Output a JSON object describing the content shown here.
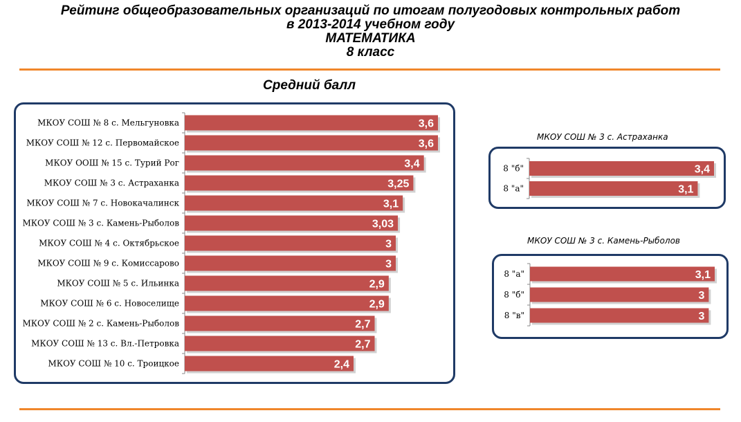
{
  "header": {
    "title_line1": "Рейтинг общеобразовательных  организаций по итогам полугодовых контрольных работ",
    "title_line2": "в 2013-2014 учебном году",
    "title_line3": "МАТЕМАТИКА",
    "title_line4": "8 класс",
    "subtitle": "Средний балл"
  },
  "colors": {
    "bar": "#c0504d",
    "frame": "#1f3a66",
    "rule": "#f0862a"
  },
  "chart_data": [
    {
      "type": "bar",
      "orientation": "horizontal",
      "title": "",
      "categories": [
        "МКОУ СОШ № 8 с. Мельгуновка",
        "МКОУ СОШ № 12 с. Первомайское",
        "МКОУ ООШ № 15 с. Турий Рог",
        "МКОУ СОШ № 3 с. Астраханка",
        "МКОУ СОШ № 7 с. Новокачалинск",
        "МКОУ СОШ № 3 с. Камень-Рыболов",
        "МКОУ СОШ № 4 с. Октябрьское",
        "МКОУ СОШ № 9 с. Комиссарово",
        "МКОУ СОШ № 5 с. Ильинка",
        "МКОУ СОШ № 6 с. Новоселище",
        "МКОУ СОШ № 2 с. Камень-Рыболов",
        "МКОУ СОШ № 13 с. Вл.-Петровка",
        "МКОУ СОШ № 10 с. Троицкое"
      ],
      "values": [
        3.6,
        3.6,
        3.4,
        3.25,
        3.1,
        3.03,
        3,
        3,
        2.9,
        2.9,
        2.7,
        2.7,
        2.4
      ],
      "labels": [
        "3,6",
        "3,6",
        "3,4",
        "3,25",
        "3,1",
        "3,03",
        "3",
        "3",
        "2,9",
        "2,9",
        "2,7",
        "2,7",
        "2,4"
      ],
      "xlim": [
        0,
        3.6
      ],
      "grid": false
    },
    {
      "type": "bar",
      "orientation": "horizontal",
      "title": "МКОУ СОШ № 3 с. Астраханка",
      "categories": [
        "8 \"б\"",
        "8 \"а\""
      ],
      "values": [
        3.4,
        3.1
      ],
      "labels": [
        "3,4",
        "3,1"
      ],
      "xlim": [
        0,
        3.4
      ],
      "grid": false
    },
    {
      "type": "bar",
      "orientation": "horizontal",
      "title": "МКОУ СОШ № 3 с. Камень-Рыболов",
      "categories": [
        "8 \"а\"",
        "8 \"б\"",
        "8 \"в\""
      ],
      "values": [
        3.1,
        3,
        3
      ],
      "labels": [
        "3,1",
        "3",
        "3"
      ],
      "xlim": [
        0,
        3.1
      ],
      "grid": false
    }
  ]
}
